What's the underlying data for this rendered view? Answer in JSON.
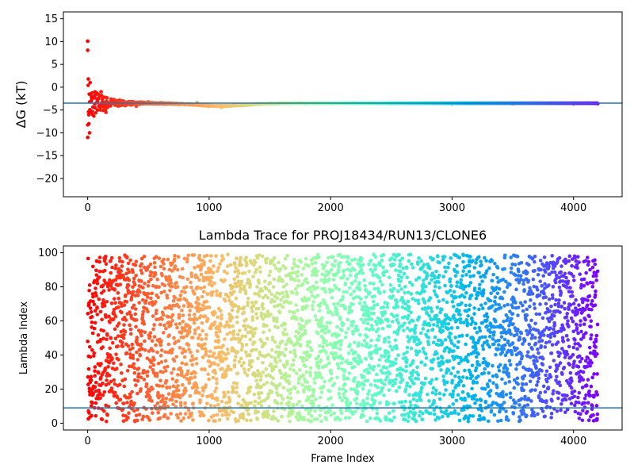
{
  "chart_data": [
    {
      "type": "scatter",
      "title": "",
      "ylabel": "ΔG (kT)",
      "xlabel": "",
      "xlim": [
        -200,
        4400
      ],
      "ylim": [
        -24,
        16.5
      ],
      "xticks": [
        0,
        1000,
        2000,
        3000,
        4000
      ],
      "yticks": [
        -20,
        -15,
        -10,
        -5,
        0,
        5,
        10,
        15
      ],
      "hline": -3.5,
      "hline_color": "#1f77b4",
      "colormap": "rainbow (red at frame 0 → violet at last frame)",
      "series": [
        {
          "x": [
            0,
            0,
            0,
            5,
            10,
            15,
            20,
            25,
            30,
            40,
            50,
            60,
            70,
            80,
            90,
            100,
            110,
            120,
            150,
            200,
            250,
            300,
            400,
            500,
            600,
            700,
            800,
            900,
            1000,
            1100,
            1200,
            1300,
            1400,
            1500,
            1600,
            1700,
            1800,
            1900,
            2000,
            2500,
            3000,
            3500,
            4000,
            4200
          ],
          "y": [
            10.1,
            8.1,
            -11.0,
            1.8,
            -8.0,
            -10.0,
            1.0,
            -5.5,
            -3.0,
            -6.0,
            -2.0,
            -4.5,
            -1.2,
            -5.0,
            -2.5,
            -3.8,
            -1.0,
            -4.0,
            -5.5,
            -3.5,
            -3.0,
            -3.5,
            -4.2,
            -3.2,
            -3.4,
            -3.6,
            -3.8,
            -3.4,
            -4.2,
            -4.4,
            -4.0,
            -3.8,
            -3.6,
            -3.5,
            -3.5,
            -3.5,
            -3.6,
            -3.5,
            -3.6,
            -3.6,
            -3.6,
            -3.6,
            -3.6,
            -3.6
          ]
        }
      ]
    },
    {
      "type": "scatter",
      "title": "Lambda Trace for PROJ18434/RUN13/CLONE6",
      "xlabel": "Frame Index",
      "ylabel": "Lambda Index",
      "xlim": [
        -200,
        4400
      ],
      "ylim": [
        -4,
        104
      ],
      "xticks": [
        0,
        1000,
        2000,
        3000,
        4000
      ],
      "yticks": [
        0,
        20,
        40,
        60,
        80,
        100
      ],
      "hline": 9,
      "hline_color": "#1f77b4",
      "colormap": "rainbow (red at frame 0 → violet at last frame)",
      "n_frames": 4200,
      "lambda_range": [
        1,
        99
      ]
    }
  ]
}
